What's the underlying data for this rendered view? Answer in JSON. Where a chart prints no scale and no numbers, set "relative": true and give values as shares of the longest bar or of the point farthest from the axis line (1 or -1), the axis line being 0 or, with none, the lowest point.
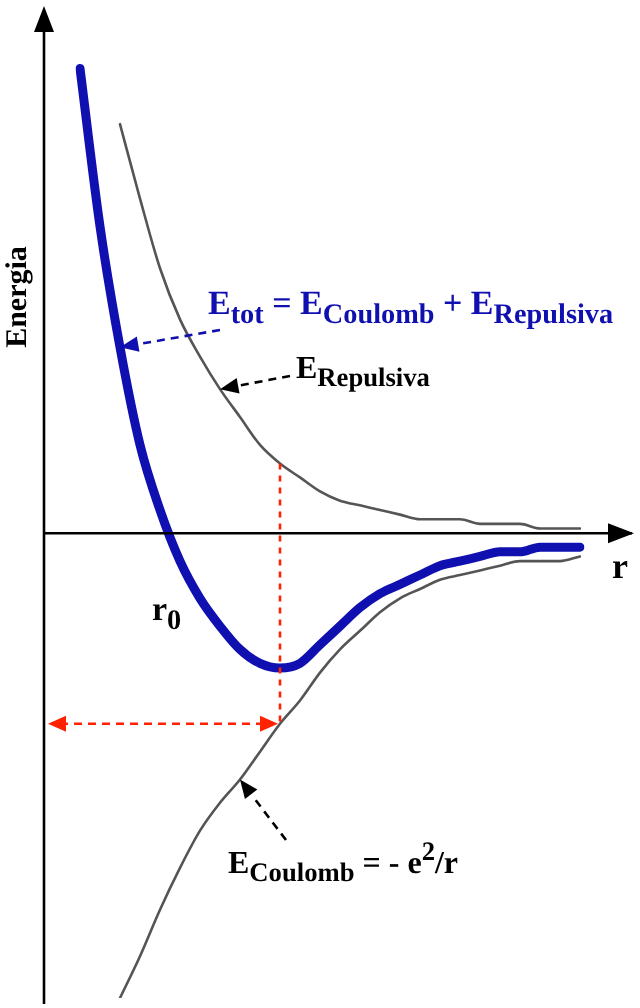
{
  "chart_data": {
    "type": "line",
    "relative": true,
    "xlabel": "r",
    "ylabel": "Energia",
    "marker": "none",
    "line_style": "solid",
    "legend": false,
    "categories": [
      null,
      null,
      null,
      null,
      null,
      null,
      null,
      null,
      null,
      null,
      null,
      null,
      null,
      null,
      null,
      null,
      null,
      null,
      null,
      null,
      null,
      null,
      null,
      null,
      null,
      null
    ],
    "series": [
      {
        "name": "E$_{tot}$ = E$_{Coulomb}$ + E$_{Repulsiva}$",
        "color": "#1010b0",
        "values": [
          1.0,
          0.66,
          0.4,
          0.19,
          0.05,
          -0.06,
          -0.14,
          -0.2,
          -0.25,
          -0.28,
          -0.29,
          -0.28,
          -0.24,
          -0.2,
          -0.16,
          -0.13,
          -0.11,
          -0.09,
          -0.07,
          -0.06,
          -0.05,
          -0.04,
          -0.04,
          -0.03,
          -0.03,
          -0.03
        ]
      },
      {
        "name": "E$_{Repulsiva}$",
        "color": "#555555",
        "values": [
          null,
          null,
          0.88,
          0.72,
          0.57,
          0.46,
          0.38,
          0.31,
          0.25,
          0.19,
          0.15,
          0.12,
          0.09,
          0.07,
          0.06,
          0.05,
          0.04,
          0.03,
          0.03,
          0.03,
          0.02,
          0.02,
          0.02,
          0.01,
          0.01,
          0.01
        ]
      },
      {
        "name": "E$_{Coulomb}$ = - e$^{2}$/r",
        "color": "#555555",
        "values": [
          null,
          null,
          -1.0,
          -0.91,
          -0.81,
          -0.72,
          -0.64,
          -0.58,
          -0.53,
          -0.47,
          -0.41,
          -0.36,
          -0.3,
          -0.25,
          -0.21,
          -0.17,
          -0.14,
          -0.12,
          -0.1,
          -0.09,
          -0.08,
          -0.07,
          -0.06,
          -0.06,
          -0.06,
          -0.05
        ]
      }
    ],
    "annotations": [
      "r$_{0}$"
    ]
  }
}
